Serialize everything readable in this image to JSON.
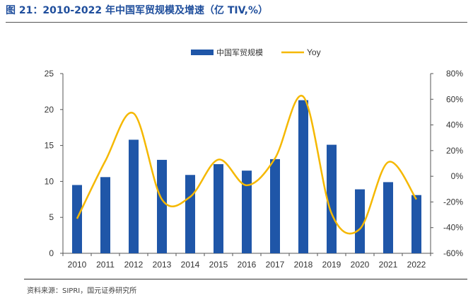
{
  "header": {
    "title": "图 21：2010-2022 年中国军贸规模及增速（亿 TIV,%）"
  },
  "footer": {
    "source": "资料来源：SIPRI，国元证券研究所"
  },
  "colors": {
    "bar": "#1f56a8",
    "line": "#f5b800",
    "title": "#1f4e9c"
  },
  "chart_data": {
    "type": "bar",
    "title": "",
    "categories": [
      "2010",
      "2011",
      "2012",
      "2013",
      "2014",
      "2015",
      "2016",
      "2017",
      "2018",
      "2019",
      "2020",
      "2021",
      "2022"
    ],
    "series": [
      {
        "name": "中国军贸规模",
        "type": "bar",
        "axis": "left",
        "values": [
          9.5,
          10.6,
          15.8,
          13.0,
          10.9,
          12.4,
          11.5,
          13.1,
          21.3,
          15.1,
          8.9,
          9.9,
          8.1
        ]
      },
      {
        "name": "Yoy",
        "type": "line",
        "axis": "right",
        "unit": "%",
        "values": [
          -33,
          12,
          49,
          -18,
          -16,
          13,
          -7,
          14,
          62,
          -29,
          -41,
          11,
          -18
        ]
      }
    ],
    "y_left": {
      "min": 0,
      "max": 25,
      "ticks": [
        "0",
        "5",
        "10",
        "15",
        "20",
        "25"
      ],
      "tick_values": [
        0,
        5,
        10,
        15,
        20,
        25
      ]
    },
    "y_right": {
      "min": -60,
      "max": 80,
      "ticks": [
        "-60%",
        "-40%",
        "-20%",
        "0%",
        "20%",
        "40%",
        "60%",
        "80%"
      ],
      "tick_values": [
        -60,
        -40,
        -20,
        0,
        20,
        40,
        60,
        80
      ]
    },
    "grid": false,
    "legend_position": "top-center"
  }
}
